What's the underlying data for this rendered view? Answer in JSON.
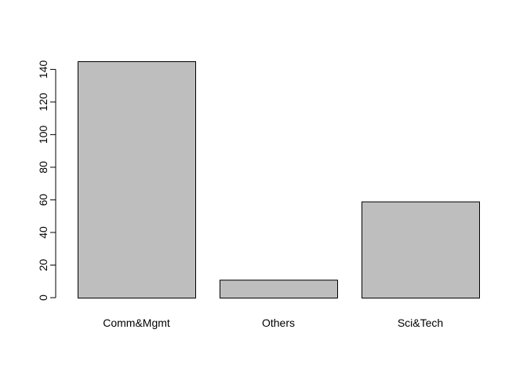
{
  "chart_data": {
    "type": "bar",
    "categories": [
      "Comm&Mgmt",
      "Others",
      "Sci&Tech"
    ],
    "values": [
      145,
      11,
      59
    ],
    "ylim": [
      0,
      145
    ],
    "yticks": [
      0,
      20,
      40,
      60,
      80,
      100,
      120,
      140
    ],
    "title": "",
    "xlabel": "",
    "ylabel": "",
    "bar_fill": "#bebebe",
    "bar_stroke": "#000000",
    "grid": false,
    "legend": "none"
  }
}
